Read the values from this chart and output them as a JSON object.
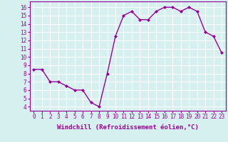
{
  "x": [
    0,
    1,
    2,
    3,
    4,
    5,
    6,
    7,
    8,
    9,
    10,
    11,
    12,
    13,
    14,
    15,
    16,
    17,
    18,
    19,
    20,
    21,
    22,
    23
  ],
  "y": [
    8.5,
    8.5,
    7.0,
    7.0,
    6.5,
    6.0,
    6.0,
    4.5,
    4.0,
    8.0,
    12.5,
    15.0,
    15.5,
    14.5,
    14.5,
    15.5,
    16.0,
    16.0,
    15.5,
    16.0,
    15.5,
    13.0,
    12.5,
    10.5
  ],
  "line_color": "#990099",
  "marker": "D",
  "marker_size": 2.0,
  "xlim": [
    -0.5,
    23.5
  ],
  "ylim": [
    3.5,
    16.7
  ],
  "yticks": [
    4,
    5,
    6,
    7,
    8,
    9,
    10,
    11,
    12,
    13,
    14,
    15,
    16
  ],
  "xticks": [
    0,
    1,
    2,
    3,
    4,
    5,
    6,
    7,
    8,
    9,
    10,
    11,
    12,
    13,
    14,
    15,
    16,
    17,
    18,
    19,
    20,
    21,
    22,
    23
  ],
  "xtick_labels": [
    "0",
    "1",
    "2",
    "3",
    "4",
    "5",
    "6",
    "7",
    "8",
    "9",
    "10",
    "11",
    "12",
    "13",
    "14",
    "15",
    "16",
    "17",
    "18",
    "19",
    "20",
    "21",
    "22",
    "23"
  ],
  "xlabel": "Windchill (Refroidissement éolien,°C)",
  "background_color": "#d6f0f0",
  "grid_color": "#ffffff",
  "tick_label_fontsize": 5.5,
  "xlabel_fontsize": 6.5,
  "line_width": 1.0
}
